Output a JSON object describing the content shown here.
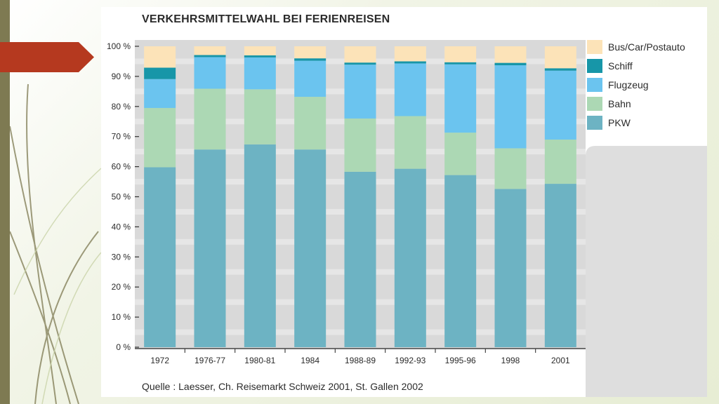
{
  "chart_data": {
    "type": "bar",
    "stacked": true,
    "title": "VERKEHRSMITTELWAHL BEI FERIENREISEN",
    "xlabel": "",
    "ylabel": "",
    "ylim": [
      0,
      100
    ],
    "yticks": [
      "0 %",
      "10 %",
      "20 %",
      "30 %",
      "40 %",
      "50 %",
      "60 %",
      "70 %",
      "80 %",
      "90 %",
      "100 %"
    ],
    "categories": [
      "1972",
      "1976-77",
      "1980-81",
      "1984",
      "1988-89",
      "1992-93",
      "1995-96",
      "1998",
      "2001"
    ],
    "series": [
      {
        "name": "PKW",
        "color": "#6db3c3",
        "values": [
          59.8,
          65.7,
          67.4,
          65.7,
          58.3,
          59.3,
          57.2,
          52.6,
          54.3
        ]
      },
      {
        "name": "Bahn",
        "color": "#acd8b4",
        "values": [
          19.7,
          20.2,
          18.3,
          17.5,
          17.7,
          17.5,
          14.1,
          13.5,
          14.7
        ]
      },
      {
        "name": "Flugzeug",
        "color": "#6bc4ef",
        "values": [
          9.6,
          10.5,
          10.6,
          12.0,
          17.9,
          17.5,
          22.7,
          27.6,
          22.9
        ]
      },
      {
        "name": "Schiff",
        "color": "#1796a8",
        "values": [
          3.8,
          0.7,
          0.7,
          0.8,
          0.7,
          0.7,
          0.7,
          0.8,
          0.8
        ]
      },
      {
        "name": "Bus/Car/Postauto",
        "color": "#fce3b8",
        "values": [
          7.1,
          2.9,
          3.0,
          4.0,
          5.4,
          5.0,
          5.3,
          5.5,
          7.3
        ]
      }
    ],
    "legend_position": "right",
    "grid": "horizontal"
  },
  "source": "Quelle : Laesser, Ch. Reisemarkt Schweiz 2001, St. Gallen 2002",
  "colors": {
    "plot_bg": "#d9d9d9",
    "grid_band": "#e6e6e6",
    "legend_bg": "#dedede",
    "slide_stripe": "#7e7a52",
    "arrow": "#b5391f"
  }
}
